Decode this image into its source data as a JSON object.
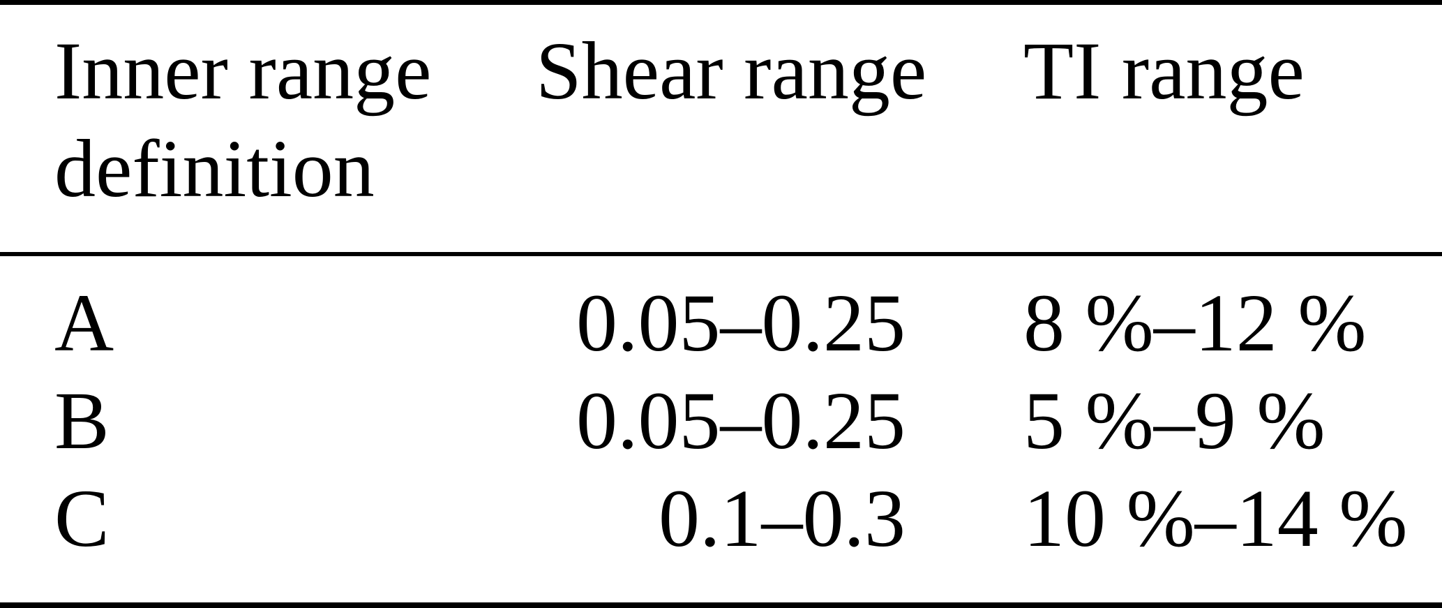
{
  "table": {
    "header": {
      "inner_range_line1": "Inner range",
      "inner_range_line2": "definition",
      "shear_range": "Shear range",
      "ti_range": "TI range"
    },
    "rows": [
      {
        "definition": "A",
        "shear_range": "0.05–0.25",
        "ti_range": "8 %–12 %"
      },
      {
        "definition": "B",
        "shear_range": "0.05–0.25",
        "ti_range": "5 %–9 %"
      },
      {
        "definition": "C",
        "shear_range": "0.1–0.3",
        "ti_range": "10 %–14 %"
      }
    ],
    "colors": {
      "background": "#ffffff",
      "text": "#000000",
      "rule": "#000000"
    }
  }
}
